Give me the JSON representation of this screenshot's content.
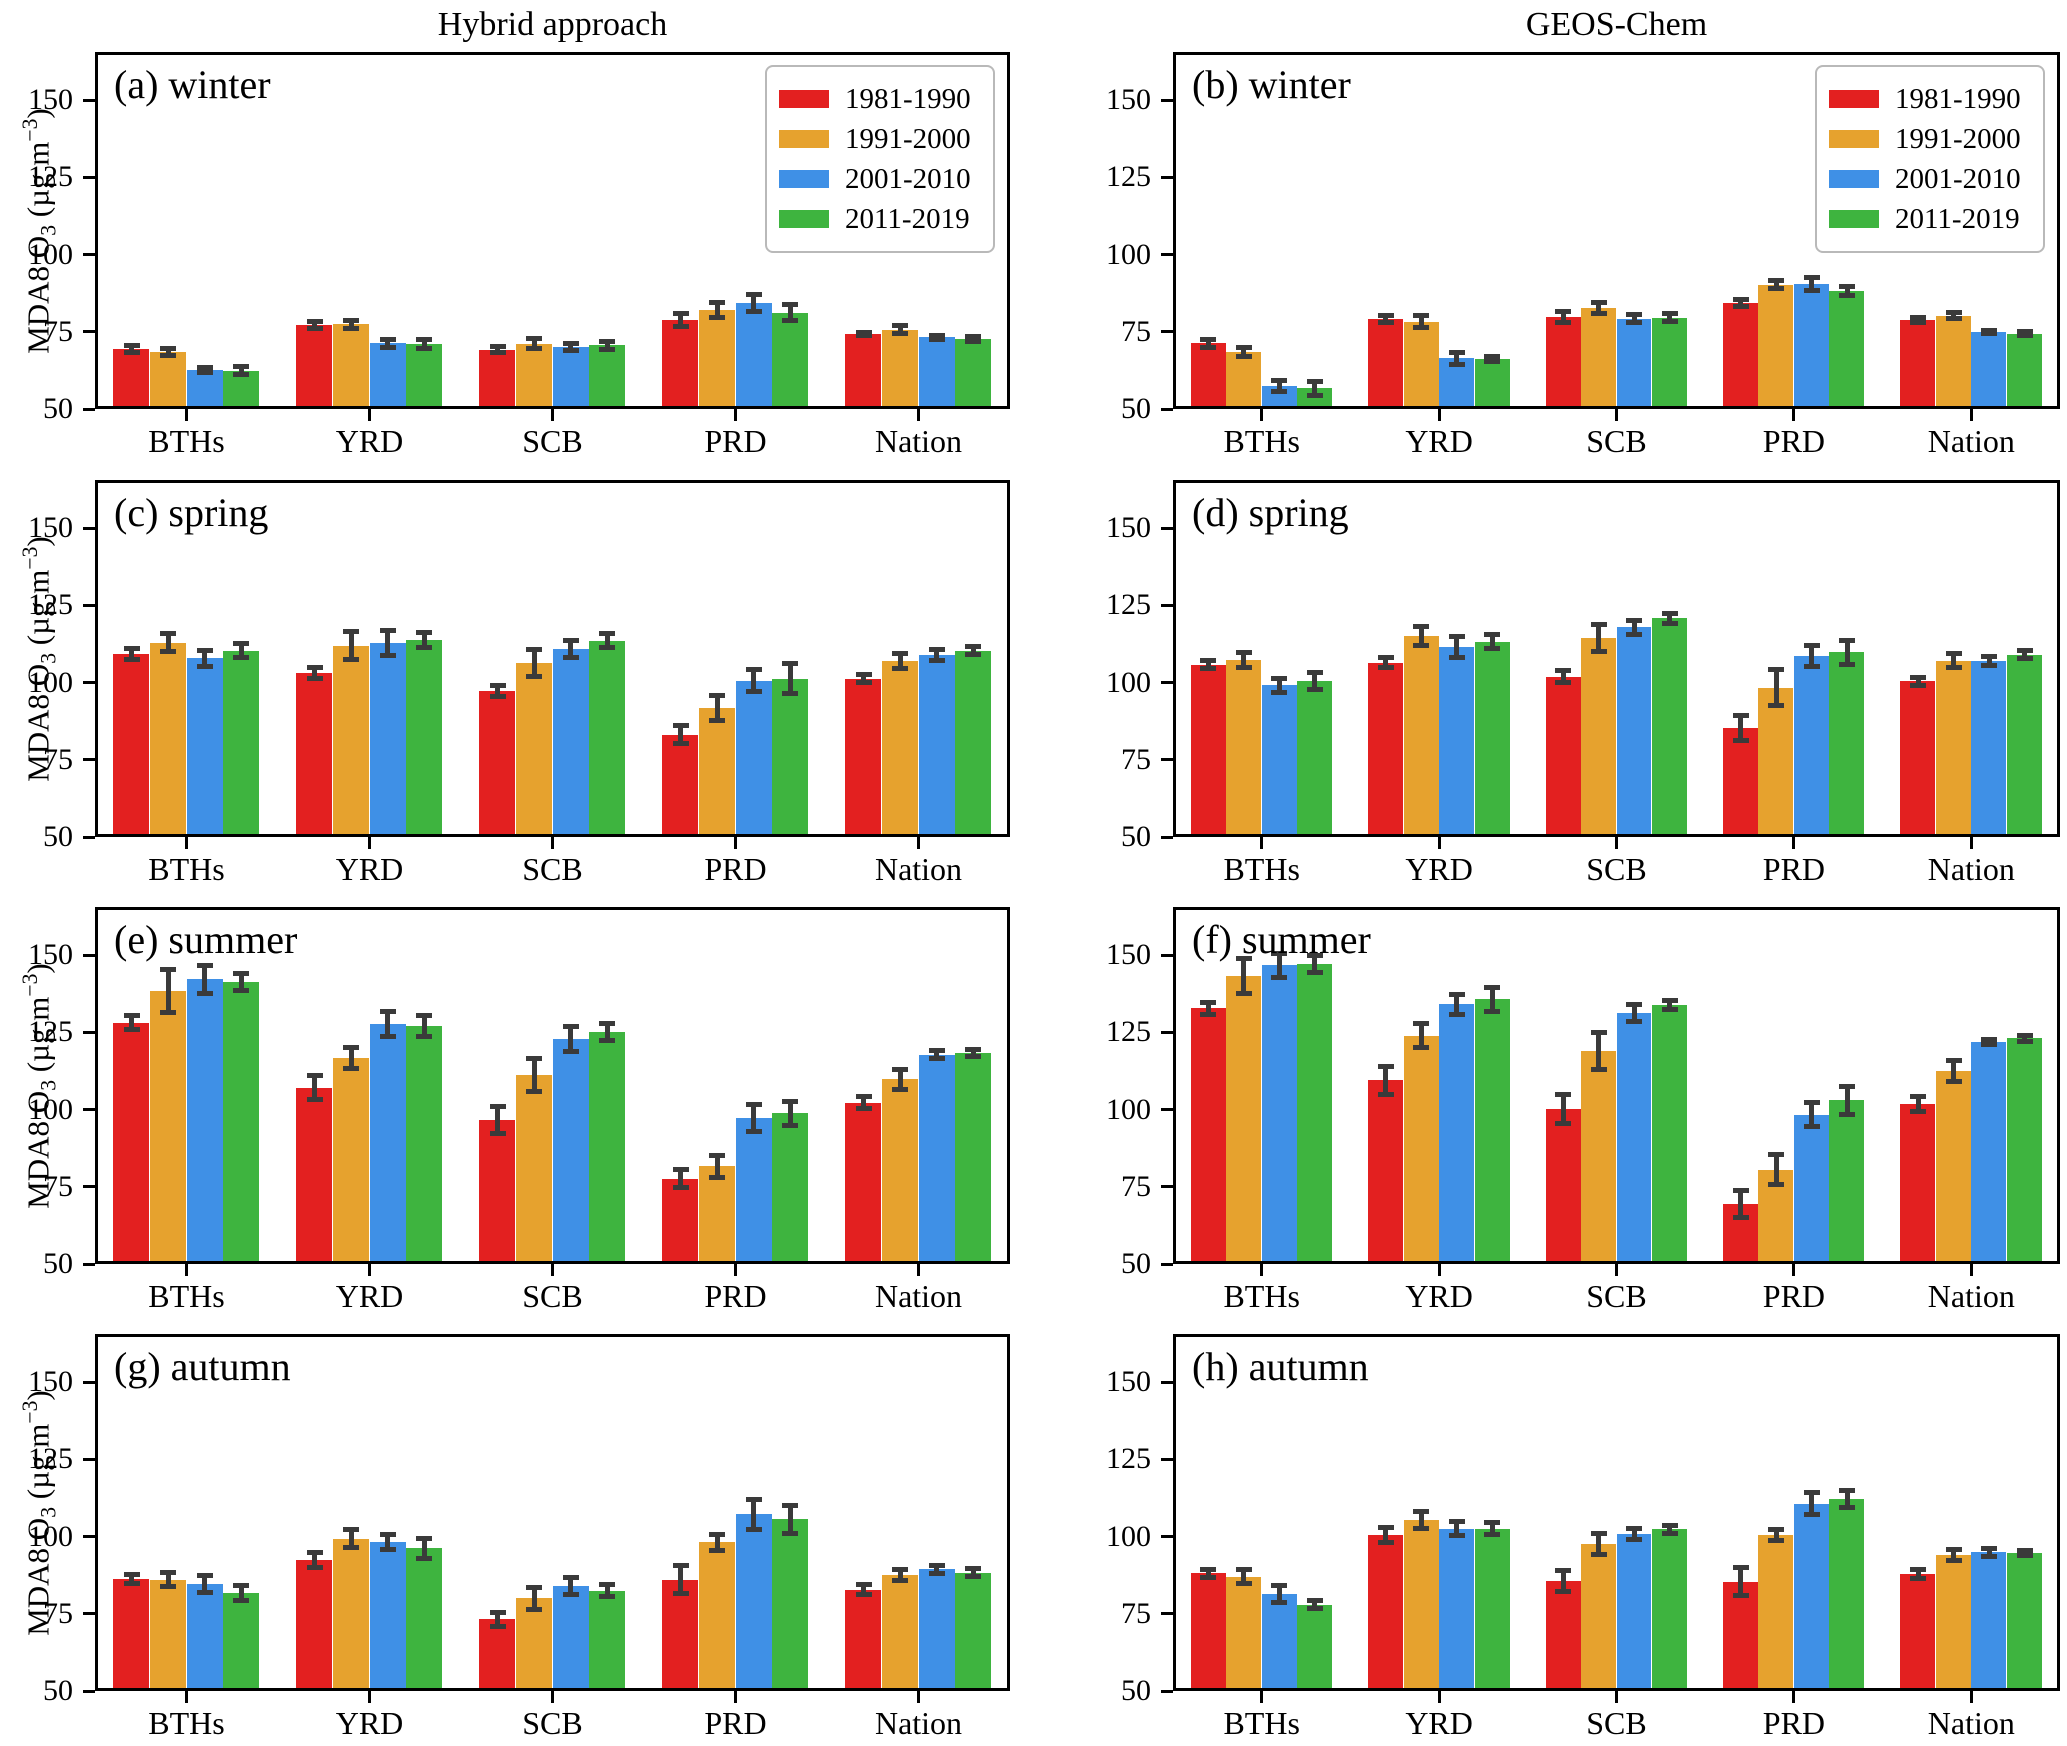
{
  "figure": {
    "column_titles": [
      "Hybrid approach",
      "GEOS-Chem"
    ],
    "ylabel_parts": {
      "base1": "MDA8 O",
      "sub": "3",
      "base2": " (µg m",
      "sup": "−3",
      "base3": ")"
    },
    "legend": {
      "items": [
        {
          "label": "1981-1990",
          "color": "#e32020"
        },
        {
          "label": "1991-2000",
          "color": "#e6a22e"
        },
        {
          "label": "2001-2010",
          "color": "#3f90e6"
        },
        {
          "label": "2011-2019",
          "color": "#3eb43f"
        }
      ]
    },
    "categories": [
      "BTHs",
      "YRD",
      "SCB",
      "PRD",
      "Nation"
    ],
    "yticks": [
      50,
      75,
      100,
      125,
      150
    ],
    "ylim": [
      50,
      165.6
    ],
    "errorbar_color": "#3a3a3a"
  },
  "chart_data": [
    {
      "type": "bar",
      "label": "(a) winter",
      "column": "Hybrid approach",
      "show_legend": true,
      "categories": [
        "BTHs",
        "YRD",
        "SCB",
        "PRD",
        "Nation"
      ],
      "series": [
        {
          "name": "1981-1990",
          "values": [
            68.5,
            76.3,
            68.3,
            77.9,
            73.3
          ],
          "errors": [
            1.5,
            1.6,
            1.4,
            2.6,
            1.1
          ]
        },
        {
          "name": "1991-2000",
          "values": [
            67.5,
            76.4,
            70.2,
            81.2,
            74.7
          ],
          "errors": [
            1.6,
            1.9,
            2.2,
            2.9,
            1.7
          ]
        },
        {
          "name": "2001-2010",
          "values": [
            61.6,
            70.3,
            69.2,
            83.3,
            72.3
          ],
          "errors": [
            1.3,
            1.7,
            1.6,
            3.3,
            1.1
          ]
        },
        {
          "name": "2011-2019",
          "values": [
            61.4,
            70.2,
            69.6,
            80.2,
            71.8
          ],
          "errors": [
            1.8,
            1.9,
            1.7,
            3.1,
            1.3
          ]
        }
      ]
    },
    {
      "type": "bar",
      "label": "(b) winter",
      "column": "GEOS-Chem",
      "show_legend": true,
      "categories": [
        "BTHs",
        "YRD",
        "SCB",
        "PRD",
        "Nation"
      ],
      "series": [
        {
          "name": "1981-1990",
          "values": [
            70.3,
            78.2,
            78.8,
            83.3,
            77.8
          ],
          "errors": [
            1.7,
            1.7,
            2.2,
            1.7,
            1.3
          ]
        },
        {
          "name": "1991-2000",
          "values": [
            67.4,
            77.3,
            81.7,
            89.3,
            79.3
          ],
          "errors": [
            2.0,
            2.5,
            2.3,
            1.8,
            1.5
          ]
        },
        {
          "name": "2001-2010",
          "values": [
            56.5,
            65.4,
            78.2,
            89.5,
            74.0
          ],
          "errors": [
            2.3,
            2.5,
            1.8,
            2.5,
            1.1
          ]
        },
        {
          "name": "2011-2019",
          "values": [
            55.7,
            65.2,
            78.6,
            87.3,
            73.4
          ],
          "errors": [
            2.7,
            1.4,
            1.7,
            2.0,
            1.1
          ]
        }
      ]
    },
    {
      "type": "bar",
      "label": "(c) spring",
      "column": "Hybrid approach",
      "show_legend": false,
      "categories": [
        "BTHs",
        "YRD",
        "SCB",
        "PRD",
        "Nation"
      ],
      "series": [
        {
          "name": "1981-1990",
          "values": [
            108.3,
            102.2,
            96.2,
            82.1,
            100.3
          ],
          "errors": [
            2.3,
            2.2,
            2.3,
            3.4,
            1.8
          ]
        },
        {
          "name": "1991-2000",
          "values": [
            112.0,
            111.0,
            105.3,
            90.9,
            106.1
          ],
          "errors": [
            3.4,
            5.0,
            4.8,
            4.6,
            3.0
          ]
        },
        {
          "name": "2001-2010",
          "values": [
            106.9,
            111.8,
            109.9,
            99.6,
            108.0
          ],
          "errors": [
            3.0,
            4.5,
            3.3,
            4.0,
            2.3
          ]
        },
        {
          "name": "2011-2019",
          "values": [
            109.4,
            112.8,
            112.6,
            100.3,
            109.4
          ],
          "errors": [
            2.8,
            3.0,
            2.8,
            5.3,
            1.8
          ]
        }
      ]
    },
    {
      "type": "bar",
      "label": "(d) spring",
      "column": "GEOS-Chem",
      "show_legend": false,
      "categories": [
        "BTHs",
        "YRD",
        "SCB",
        "PRD",
        "Nation"
      ],
      "series": [
        {
          "name": "1981-1990",
          "values": [
            104.8,
            105.5,
            101.0,
            84.4,
            99.4
          ],
          "errors": [
            1.8,
            2.2,
            2.5,
            4.5,
            1.8
          ]
        },
        {
          "name": "1991-2000",
          "values": [
            106.4,
            114.1,
            113.4,
            97.3,
            106.1
          ],
          "errors": [
            3.0,
            3.6,
            4.8,
            6.3,
            2.8
          ]
        },
        {
          "name": "2001-2010",
          "values": [
            98.1,
            110.7,
            116.9,
            107.7,
            106.1
          ],
          "errors": [
            2.7,
            3.9,
            2.8,
            3.8,
            2.0
          ]
        },
        {
          "name": "2011-2019",
          "values": [
            99.6,
            112.3,
            119.8,
            108.8,
            108.0
          ],
          "errors": [
            3.3,
            2.7,
            2.2,
            4.5,
            1.8
          ]
        }
      ]
    },
    {
      "type": "bar",
      "label": "(e) summer",
      "column": "Hybrid approach",
      "show_legend": false,
      "categories": [
        "BTHs",
        "YRD",
        "SCB",
        "PRD",
        "Nation"
      ],
      "series": [
        {
          "name": "1981-1990",
          "values": [
            127.2,
            106.1,
            95.7,
            76.7,
            101.3
          ],
          "errors": [
            2.8,
            4.3,
            4.8,
            3.3,
            2.5
          ]
        },
        {
          "name": "1991-2000",
          "values": [
            137.4,
            115.8,
            110.2,
            80.7,
            108.8
          ],
          "errors": [
            7.5,
            3.8,
            5.8,
            4.0,
            3.8
          ]
        },
        {
          "name": "2001-2010",
          "values": [
            141.2,
            126.7,
            121.9,
            96.3,
            116.8
          ],
          "errors": [
            5.0,
            4.5,
            4.5,
            5.0,
            1.8
          ]
        },
        {
          "name": "2011-2019",
          "values": [
            140.4,
            126.1,
            124.1,
            97.8,
            117.4
          ],
          "errors": [
            3.3,
            3.8,
            3.3,
            4.5,
            1.5
          ]
        }
      ]
    },
    {
      "type": "bar",
      "label": "(f) summer",
      "column": "GEOS-Chem",
      "show_legend": false,
      "categories": [
        "BTHs",
        "YRD",
        "SCB",
        "PRD",
        "Nation"
      ],
      "series": [
        {
          "name": "1981-1990",
          "values": [
            131.8,
            108.5,
            99.2,
            68.5,
            100.8
          ],
          "errors": [
            2.3,
            5.0,
            5.3,
            4.8,
            2.8
          ]
        },
        {
          "name": "1991-2000",
          "values": [
            142.3,
            123.0,
            118.1,
            79.6,
            111.5
          ],
          "errors": [
            6.3,
            4.3,
            6.5,
            5.3,
            4.0
          ]
        },
        {
          "name": "2001-2010",
          "values": [
            145.7,
            133.1,
            130.4,
            97.4,
            120.9
          ],
          "errors": [
            4.5,
            3.8,
            3.3,
            4.3,
            1.3
          ]
        },
        {
          "name": "2011-2019",
          "values": [
            146.1,
            134.7,
            132.9,
            102.1,
            122.1
          ],
          "errors": [
            3.3,
            4.3,
            2.0,
            5.0,
            1.5
          ]
        }
      ]
    },
    {
      "type": "bar",
      "label": "(g) autumn",
      "column": "Hybrid approach",
      "show_legend": false,
      "categories": [
        "BTHs",
        "YRD",
        "SCB",
        "PRD",
        "Nation"
      ],
      "series": [
        {
          "name": "1981-1990",
          "values": [
            85.3,
            91.5,
            72.3,
            85.1,
            81.9
          ],
          "errors": [
            1.8,
            3.0,
            2.8,
            5.0,
            2.0
          ]
        },
        {
          "name": "1991-2000",
          "values": [
            85.1,
            98.4,
            79.0,
            97.2,
            86.5
          ],
          "errors": [
            2.8,
            3.3,
            4.0,
            3.0,
            2.3
          ]
        },
        {
          "name": "2001-2010",
          "values": [
            83.7,
            97.3,
            83.1,
            106.2,
            88.5
          ],
          "errors": [
            3.3,
            2.8,
            3.3,
            5.3,
            1.8
          ]
        },
        {
          "name": "2011-2019",
          "values": [
            80.8,
            95.2,
            81.5,
            104.6,
            87.4
          ],
          "errors": [
            2.8,
            3.8,
            2.5,
            5.0,
            1.8
          ]
        }
      ]
    },
    {
      "type": "bar",
      "label": "(h) autumn",
      "column": "GEOS-Chem",
      "show_legend": false,
      "categories": [
        "BTHs",
        "YRD",
        "SCB",
        "PRD",
        "Nation"
      ],
      "series": [
        {
          "name": "1981-1990",
          "values": [
            87.2,
            99.5,
            84.7,
            84.4,
            86.9
          ],
          "errors": [
            1.8,
            3.0,
            3.8,
            5.0,
            2.0
          ]
        },
        {
          "name": "1991-2000",
          "values": [
            86.1,
            104.5,
            96.6,
            99.5,
            93.0
          ],
          "errors": [
            2.8,
            3.3,
            4.0,
            2.3,
            2.3
          ]
        },
        {
          "name": "2001-2010",
          "values": [
            80.5,
            101.6,
            100.0,
            109.7,
            93.9
          ],
          "errors": [
            3.3,
            2.8,
            2.3,
            4.0,
            1.8
          ]
        },
        {
          "name": "2011-2019",
          "values": [
            77.0,
            101.6,
            101.4,
            111.3,
            93.7
          ],
          "errors": [
            1.8,
            2.5,
            1.8,
            3.3,
            1.3
          ]
        }
      ]
    }
  ]
}
